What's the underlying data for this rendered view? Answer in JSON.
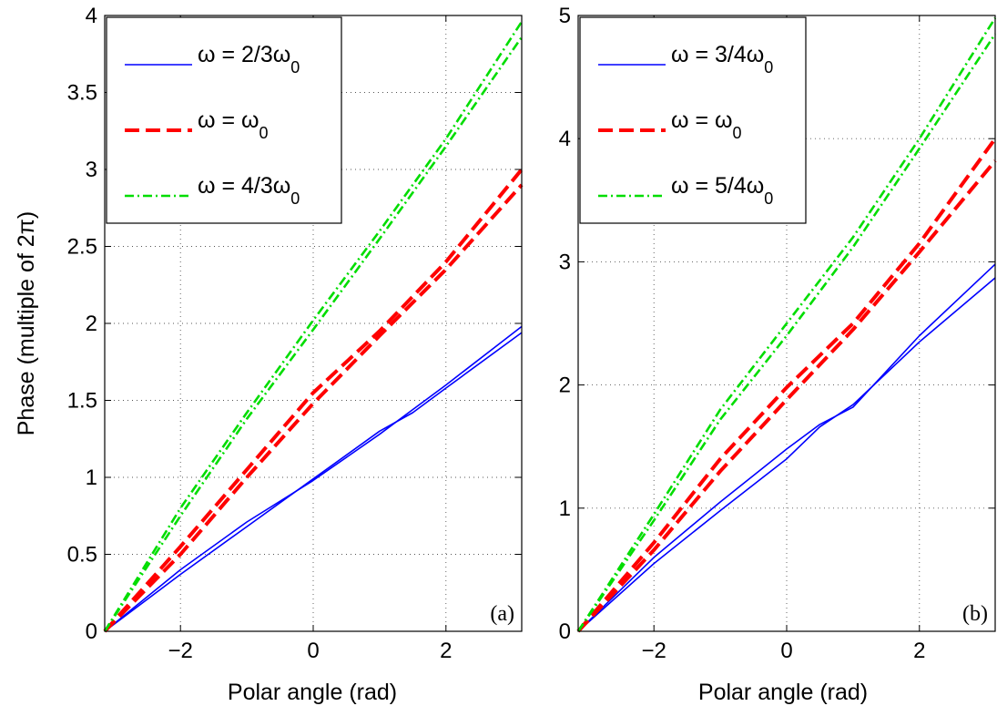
{
  "chart_data": [
    {
      "type": "line",
      "panel_label": "(a)",
      "xlabel": "Polar angle (rad)",
      "ylabel": "Phase (multiple of 2π)",
      "xlim": [
        -3.1416,
        3.1416
      ],
      "ylim": [
        0,
        4
      ],
      "xticks": [
        -2,
        0,
        2
      ],
      "xtick_labels": [
        "−2",
        "0",
        "2"
      ],
      "yticks": [
        0,
        0.5,
        1,
        1.5,
        2,
        2.5,
        3,
        3.5,
        4
      ],
      "ytick_labels": [
        "0",
        "0.5",
        "1",
        "1.5",
        "2",
        "2.5",
        "3",
        "3.5",
        "4"
      ],
      "grid": true,
      "legend_position": "top-left",
      "series": [
        {
          "legend": {
            "main": "ω = 2/3ω",
            "sub": "0"
          },
          "color": "#0000ff",
          "style": "solid",
          "lines": [
            {
              "x": [
                -3.1416,
                -2,
                -1,
                0,
                1,
                1.5,
                2,
                3.1416
              ],
              "y": [
                0,
                0.4,
                0.71,
                0.98,
                1.28,
                1.44,
                1.6,
                1.98
              ]
            },
            {
              "x": [
                -3.1416,
                -2,
                -1,
                0,
                1,
                1.5,
                2,
                3.1416
              ],
              "y": [
                0,
                0.37,
                0.68,
                0.99,
                1.3,
                1.42,
                1.58,
                1.94
              ]
            }
          ]
        },
        {
          "legend": {
            "main": "ω = ω",
            "sub": "0"
          },
          "color": "#ff0000",
          "style": "dashed",
          "lines": [
            {
              "x": [
                -3.1416,
                -2,
                -1,
                0,
                1,
                2,
                3.1416
              ],
              "y": [
                0,
                0.55,
                1.05,
                1.55,
                1.95,
                2.4,
                3.0
              ]
            },
            {
              "x": [
                -3.1416,
                -2,
                -1,
                0,
                1,
                2,
                3.1416
              ],
              "y": [
                0,
                0.5,
                1.0,
                1.48,
                1.92,
                2.35,
                2.9
              ]
            }
          ]
        },
        {
          "legend": {
            "main": "ω = 4/3ω",
            "sub": "0"
          },
          "color": "#00dd00",
          "style": "dashdot",
          "lines": [
            {
              "x": [
                -3.1416,
                -2,
                -1,
                0,
                1,
                2,
                3.1416
              ],
              "y": [
                0,
                0.8,
                1.42,
                2.02,
                2.6,
                3.2,
                3.96
              ]
            },
            {
              "x": [
                -3.1416,
                -2,
                -1,
                0,
                1,
                2,
                3.1416
              ],
              "y": [
                0,
                0.75,
                1.38,
                1.96,
                2.55,
                3.15,
                3.86
              ]
            }
          ]
        }
      ]
    },
    {
      "type": "line",
      "panel_label": "(b)",
      "xlabel": "Polar angle (rad)",
      "ylabel": "",
      "xlim": [
        -3.1416,
        3.1416
      ],
      "ylim": [
        0,
        5
      ],
      "xticks": [
        -2,
        0,
        2
      ],
      "xtick_labels": [
        "−2",
        "0",
        "2"
      ],
      "yticks": [
        0,
        1,
        2,
        3,
        4,
        5
      ],
      "ytick_labels": [
        "0",
        "1",
        "2",
        "3",
        "4",
        "5"
      ],
      "grid": true,
      "legend_position": "top-left",
      "series": [
        {
          "legend": {
            "main": "ω = 3/4ω",
            "sub": "0"
          },
          "color": "#0000ff",
          "style": "solid",
          "lines": [
            {
              "x": [
                -3.1416,
                -2,
                -1,
                0,
                0.5,
                1,
                2,
                3.1416
              ],
              "y": [
                0,
                0.6,
                1.05,
                1.48,
                1.68,
                1.82,
                2.4,
                2.98
              ]
            },
            {
              "x": [
                -3.1416,
                -2,
                -1,
                0,
                0.5,
                1,
                2,
                3.1416
              ],
              "y": [
                0,
                0.55,
                0.98,
                1.4,
                1.66,
                1.84,
                2.35,
                2.87
              ]
            }
          ]
        },
        {
          "legend": {
            "main": "ω = ω",
            "sub": "0"
          },
          "color": "#ff0000",
          "style": "dashed",
          "lines": [
            {
              "x": [
                -3.1416,
                -2,
                -1,
                0,
                1,
                2,
                3.1416
              ],
              "y": [
                0,
                0.72,
                1.4,
                1.98,
                2.5,
                3.15,
                4.0
              ]
            },
            {
              "x": [
                -3.1416,
                -2,
                -1,
                0,
                1,
                2,
                3.1416
              ],
              "y": [
                0,
                0.66,
                1.3,
                1.88,
                2.45,
                3.08,
                3.82
              ]
            }
          ]
        },
        {
          "legend": {
            "main": "ω = 5/4ω",
            "sub": "0"
          },
          "color": "#00dd00",
          "style": "dashdot",
          "lines": [
            {
              "x": [
                -3.1416,
                -2,
                -1,
                0,
                1,
                2,
                3.1416
              ],
              "y": [
                0,
                0.95,
                1.8,
                2.5,
                3.2,
                4.0,
                4.98
              ]
            },
            {
              "x": [
                -3.1416,
                -2,
                -1,
                0,
                1,
                2,
                3.1416
              ],
              "y": [
                0,
                0.9,
                1.72,
                2.4,
                3.12,
                3.92,
                4.85
              ]
            }
          ]
        }
      ]
    }
  ]
}
